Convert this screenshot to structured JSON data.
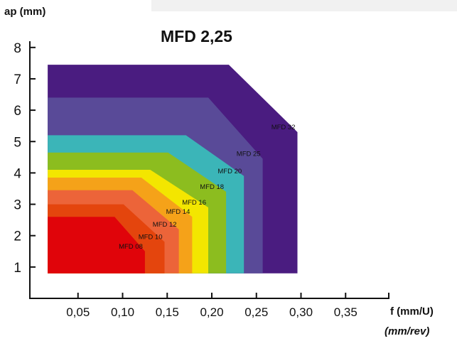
{
  "chart_data": {
    "type": "area",
    "title": "MFD 2,25",
    "ylabel": "ap (mm)",
    "xlabel": "f (mm/U)",
    "xlabel_alt": "(mm/rev)",
    "xlim": [
      0,
      0.4
    ],
    "ylim": [
      0,
      8
    ],
    "x_ticks": [
      "0,05",
      "0,10",
      "0,15",
      "0,20",
      "0,25",
      "0,30",
      "0,35"
    ],
    "x_tick_values": [
      0.05,
      0.1,
      0.15,
      0.2,
      0.25,
      0.3,
      0.35
    ],
    "y_ticks": [
      "1",
      "2",
      "3",
      "4",
      "5",
      "6",
      "7",
      "8"
    ],
    "y_tick_values": [
      1,
      2,
      3,
      4,
      5,
      6,
      7,
      8
    ],
    "series": [
      {
        "name": "MFD 32",
        "color": "#4a1c80",
        "points": [
          [
            0.02,
            0.8
          ],
          [
            0.02,
            7.45
          ],
          [
            0.223,
            7.45
          ],
          [
            0.3,
            5.3
          ],
          [
            0.3,
            0.8
          ]
        ]
      },
      {
        "name": "MFD 25",
        "color": "#594a98",
        "points": [
          [
            0.02,
            0.8
          ],
          [
            0.02,
            6.4
          ],
          [
            0.2,
            6.4
          ],
          [
            0.261,
            4.45
          ],
          [
            0.261,
            0.8
          ]
        ]
      },
      {
        "name": "MFD 20",
        "color": "#3bb5b8",
        "points": [
          [
            0.02,
            0.8
          ],
          [
            0.02,
            5.2
          ],
          [
            0.175,
            5.2
          ],
          [
            0.24,
            3.9
          ],
          [
            0.24,
            0.8
          ]
        ]
      },
      {
        "name": "MFD 18",
        "color": "#8cbd1f",
        "points": [
          [
            0.02,
            0.8
          ],
          [
            0.02,
            4.65
          ],
          [
            0.155,
            4.65
          ],
          [
            0.22,
            3.4
          ],
          [
            0.22,
            0.8
          ]
        ]
      },
      {
        "name": "MFD 16",
        "color": "#f3e600",
        "points": [
          [
            0.02,
            0.8
          ],
          [
            0.02,
            4.1
          ],
          [
            0.135,
            4.1
          ],
          [
            0.2,
            2.9
          ],
          [
            0.2,
            0.8
          ]
        ]
      },
      {
        "name": "MFD 14",
        "color": "#f5a219",
        "points": [
          [
            0.02,
            0.8
          ],
          [
            0.02,
            3.85
          ],
          [
            0.125,
            3.85
          ],
          [
            0.182,
            2.6
          ],
          [
            0.182,
            0.8
          ]
        ]
      },
      {
        "name": "MFD 12",
        "color": "#ec6439",
        "points": [
          [
            0.02,
            0.8
          ],
          [
            0.02,
            3.45
          ],
          [
            0.115,
            3.45
          ],
          [
            0.167,
            2.2
          ],
          [
            0.167,
            0.8
          ]
        ]
      },
      {
        "name": "MFD 10",
        "color": "#e4450d",
        "points": [
          [
            0.02,
            0.8
          ],
          [
            0.02,
            3.0
          ],
          [
            0.105,
            3.0
          ],
          [
            0.151,
            1.8
          ],
          [
            0.151,
            0.8
          ]
        ]
      },
      {
        "name": "MFD 08",
        "color": "#e0040a",
        "points": [
          [
            0.02,
            0.8
          ],
          [
            0.02,
            2.6
          ],
          [
            0.095,
            2.6
          ],
          [
            0.129,
            1.5
          ],
          [
            0.129,
            0.8
          ]
        ]
      }
    ]
  }
}
